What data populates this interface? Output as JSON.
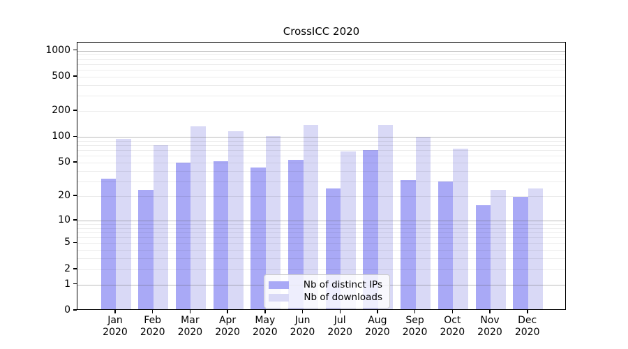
{
  "chart_data": {
    "type": "bar",
    "title": "CrossICC 2020",
    "months": [
      "Jan",
      "Feb",
      "Mar",
      "Apr",
      "May",
      "Jun",
      "Jul",
      "Aug",
      "Sep",
      "Oct",
      "Nov",
      "Dec"
    ],
    "year": "2020",
    "categories": [
      "Jan 2020",
      "Feb 2020",
      "Mar 2020",
      "Apr 2020",
      "May 2020",
      "Jun 2020",
      "Jul 2020",
      "Aug 2020",
      "Sep 2020",
      "Oct 2020",
      "Nov 2020",
      "Dec 2020"
    ],
    "series": [
      {
        "name": "Nb of distinct IPs",
        "color": "#a9a9f6",
        "values": [
          31,
          23,
          48,
          50,
          42,
          52,
          24,
          68,
          30,
          29,
          15,
          19
        ]
      },
      {
        "name": "Nb of downloads",
        "color": "#d9d9f6",
        "values": [
          92,
          78,
          129,
          112,
          99,
          134,
          65,
          132,
          96,
          71,
          23,
          24
        ]
      }
    ],
    "yscale": "log1p",
    "ylim": [
      0,
      1240
    ],
    "yticks": [
      0,
      1,
      2,
      5,
      10,
      20,
      50,
      100,
      200,
      500,
      1000
    ],
    "grid": true,
    "legend_position": "lower-center-inside",
    "colors": {
      "distinct_ips": "#a9a9f6",
      "downloads": "#d9d9f6",
      "grid_major": "#b5b5b5",
      "grid_minor": "#ececec",
      "axis": "#000000",
      "background": "#ffffff"
    }
  }
}
